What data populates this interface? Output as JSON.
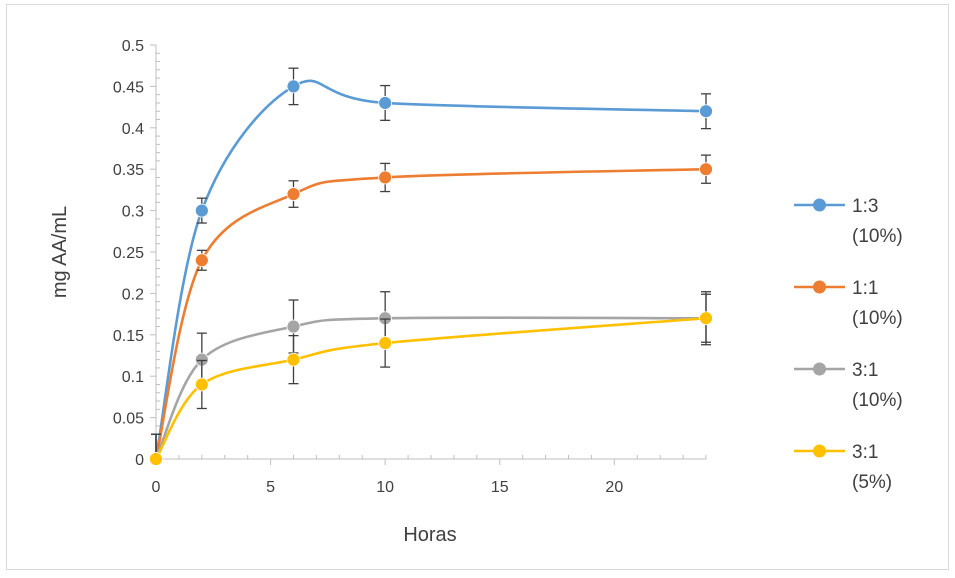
{
  "chart_data": {
    "type": "line",
    "title": "",
    "xlabel": "Horas",
    "ylabel": "mg AA/mL",
    "xlim": [
      0,
      24
    ],
    "ylim": [
      0,
      0.5
    ],
    "x_ticks": [
      0,
      5,
      10,
      15,
      20
    ],
    "y_ticks": [
      0,
      0.05,
      0.1,
      0.15,
      0.2,
      0.25,
      0.3,
      0.35,
      0.4,
      0.45,
      0.5
    ],
    "grid": false,
    "legend_position": "right",
    "series": [
      {
        "name": "1:3 (10%)",
        "color": "#5b9bd5",
        "x": [
          0,
          2,
          6,
          10,
          24
        ],
        "y": [
          0,
          0.3,
          0.45,
          0.43,
          0.42
        ],
        "error": [
          0.03,
          0.015,
          0.022,
          0.021,
          0.021
        ]
      },
      {
        "name": "1:1 (10%)",
        "color": "#ed7d31",
        "x": [
          0,
          2,
          6,
          10,
          24
        ],
        "y": [
          0,
          0.24,
          0.32,
          0.34,
          0.35
        ],
        "error": [
          0.03,
          0.012,
          0.016,
          0.017,
          0.017
        ]
      },
      {
        "name": "3:1 (10%)",
        "color": "#a5a5a5",
        "x": [
          0,
          2,
          6,
          10,
          24
        ],
        "y": [
          0,
          0.12,
          0.16,
          0.17,
          0.17
        ],
        "error": [
          0.03,
          0.032,
          0.032,
          0.032,
          0.032
        ]
      },
      {
        "name": "3:1 (5%)",
        "color": "#ffc000",
        "x": [
          0,
          2,
          6,
          10,
          24
        ],
        "y": [
          0,
          0.09,
          0.12,
          0.14,
          0.17
        ],
        "error": [
          0.03,
          0.029,
          0.029,
          0.029,
          0.029
        ]
      }
    ]
  }
}
